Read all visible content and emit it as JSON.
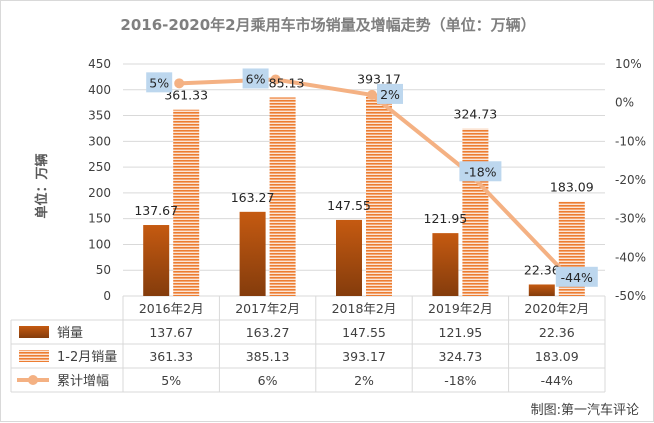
{
  "chart_data": {
    "type": "bar+line",
    "title": "2016-2020年2月乘用车市场销量及增幅走势（单位：万辆）",
    "ylabel": "单位：万辆",
    "categories": [
      "2016年2月",
      "2017年2月",
      "2018年2月",
      "2019年2月",
      "2020年2月"
    ],
    "ylim": [
      0,
      450
    ],
    "yticks": [
      "0",
      "50",
      "100",
      "150",
      "200",
      "250",
      "300",
      "350",
      "400",
      "450"
    ],
    "y2lim": [
      -50,
      10
    ],
    "y2ticks": [
      "-50%",
      "-40%",
      "-30%",
      "-20%",
      "-10%",
      "0%",
      "10%"
    ],
    "series": [
      {
        "name": "销量",
        "kind": "bar",
        "color": "#c55a11",
        "values": [
          137.67,
          163.27,
          147.55,
          121.95,
          22.36
        ],
        "labels": [
          "137.67",
          "163.27",
          "147.55",
          "121.95",
          "22.36"
        ]
      },
      {
        "name": "1-2月销量",
        "kind": "bar",
        "color": "#ed7d31",
        "pattern": "horizontal-stripes",
        "values": [
          361.33,
          385.13,
          393.17,
          324.73,
          183.09
        ],
        "labels": [
          "361.33",
          "385.13",
          "393.17",
          "324.73",
          "183.09"
        ]
      },
      {
        "name": "累计增幅",
        "kind": "line",
        "axis": "secondary",
        "color": "#f4b183",
        "values": [
          5,
          6,
          2,
          -18,
          -44
        ],
        "labels": [
          "5%",
          "6%",
          "2%",
          "-18%",
          "-44%"
        ]
      }
    ],
    "grid": true,
    "legend": "data-table",
    "credit": "制图:第一汽车评论"
  }
}
